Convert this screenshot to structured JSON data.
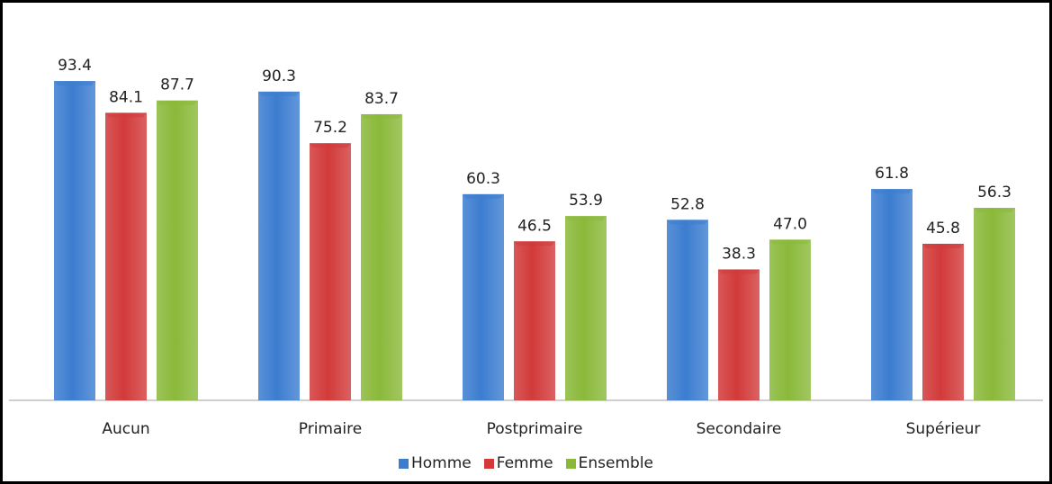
{
  "chart_data": {
    "type": "bar",
    "categories": [
      "Aucun",
      "Primaire",
      "Postprimaire",
      "Secondaire",
      "Supérieur"
    ],
    "series": [
      {
        "name": "Homme",
        "values": [
          93.4,
          90.3,
          60.3,
          52.8,
          61.8
        ],
        "color": "#3c7dd0"
      },
      {
        "name": "Femme",
        "values": [
          84.1,
          75.2,
          46.5,
          38.3,
          45.8
        ],
        "color": "#d23a3a"
      },
      {
        "name": "Ensemble",
        "values": [
          87.7,
          83.7,
          53.9,
          47.0,
          56.3
        ],
        "color": "#8ab93a"
      }
    ],
    "value_labels": [
      [
        "93.4",
        "84.1",
        "87.7"
      ],
      [
        "90.3",
        "75.2",
        "83.7"
      ],
      [
        "60.3",
        "46.5",
        "53.9"
      ],
      [
        "52.8",
        "38.3",
        "47.0"
      ],
      [
        "61.8",
        "45.8",
        "56.3"
      ]
    ],
    "ylim": [
      0,
      100
    ],
    "grid": false,
    "legend_position": "bottom",
    "frame_color": "#000000"
  }
}
